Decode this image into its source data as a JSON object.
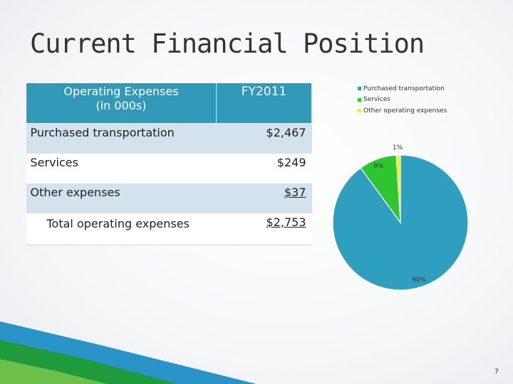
{
  "title": "Current Financial Position",
  "table": {
    "header": {
      "col1_line1": "Operating Expenses",
      "col1_line2": "(in 000s)",
      "col2": "FY2011"
    },
    "rows": [
      {
        "label": "Purchased transportation",
        "value": "$2,467"
      },
      {
        "label": "Services",
        "value": "$249"
      },
      {
        "label": "Other expenses",
        "value": "$37"
      },
      {
        "label": "Total operating expenses",
        "value": "$2,753"
      }
    ]
  },
  "chart_data": {
    "type": "pie",
    "categories": [
      "Purchased transportation",
      "Services",
      "Other operating expenses"
    ],
    "values": [
      90,
      9,
      1
    ],
    "labels": [
      "90%",
      "9%",
      "1%"
    ],
    "colors": [
      "#2e9fbf",
      "#2ec52e",
      "#eef21f"
    ],
    "legend": "top-right"
  },
  "page_number": "7"
}
